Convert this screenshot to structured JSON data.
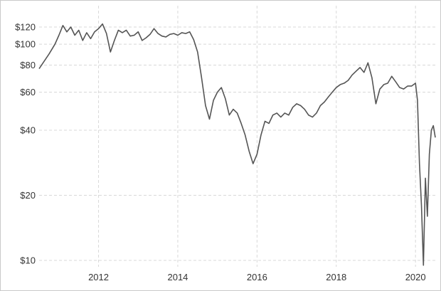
{
  "chart_data": {
    "type": "line",
    "title": "",
    "xlabel": "",
    "ylabel": "",
    "y_scale": "log",
    "ylim": [
      9.5,
      130
    ],
    "xlim": [
      2010.5,
      2020.5
    ],
    "grid": true,
    "line_color": "#555555",
    "y_ticks": [
      {
        "value": 120,
        "label": "$120"
      },
      {
        "value": 100,
        "label": "$100"
      },
      {
        "value": 80,
        "label": "$80"
      },
      {
        "value": 60,
        "label": "$60"
      },
      {
        "value": 40,
        "label": "$40"
      },
      {
        "value": 20,
        "label": "$20"
      },
      {
        "value": 10,
        "label": "$10"
      }
    ],
    "x_ticks": [
      {
        "value": 2012,
        "label": "2012"
      },
      {
        "value": 2014,
        "label": "2014"
      },
      {
        "value": 2016,
        "label": "2016"
      },
      {
        "value": 2018,
        "label": "2018"
      },
      {
        "value": 2020,
        "label": "2020"
      }
    ],
    "series": [
      {
        "x": [
          2010.5,
          2010.6,
          2010.75,
          2010.9,
          2011.0,
          2011.1,
          2011.2,
          2011.3,
          2011.4,
          2011.5,
          2011.6,
          2011.7,
          2011.8,
          2011.9,
          2012.0,
          2012.1,
          2012.2,
          2012.3,
          2012.4,
          2012.5,
          2012.6,
          2012.7,
          2012.8,
          2012.9,
          2013.0,
          2013.1,
          2013.2,
          2013.3,
          2013.4,
          2013.5,
          2013.6,
          2013.7,
          2013.8,
          2013.9,
          2014.0,
          2014.1,
          2014.2,
          2014.3,
          2014.4,
          2014.5,
          2014.6,
          2014.7,
          2014.8,
          2014.9,
          2015.0,
          2015.1,
          2015.2,
          2015.3,
          2015.4,
          2015.5,
          2015.6,
          2015.7,
          2015.8,
          2015.9,
          2016.0,
          2016.1,
          2016.2,
          2016.3,
          2016.4,
          2016.5,
          2016.6,
          2016.7,
          2016.8,
          2016.9,
          2017.0,
          2017.1,
          2017.2,
          2017.3,
          2017.4,
          2017.5,
          2017.6,
          2017.7,
          2017.8,
          2017.9,
          2018.0,
          2018.1,
          2018.2,
          2018.3,
          2018.4,
          2018.5,
          2018.6,
          2018.7,
          2018.8,
          2018.9,
          2019.0,
          2019.1,
          2019.2,
          2019.3,
          2019.4,
          2019.5,
          2019.6,
          2019.7,
          2019.8,
          2019.9,
          2020.0,
          2020.05,
          2020.1,
          2020.15,
          2020.2,
          2020.25,
          2020.3,
          2020.35,
          2020.4,
          2020.45,
          2020.5
        ],
        "values": [
          77,
          82,
          90,
          100,
          110,
          122,
          114,
          120,
          110,
          116,
          104,
          113,
          106,
          114,
          118,
          124,
          112,
          92,
          104,
          116,
          113,
          116,
          109,
          110,
          114,
          104,
          107,
          111,
          118,
          112,
          109,
          108,
          111,
          112,
          110,
          113,
          112,
          114,
          105,
          92,
          70,
          52,
          45,
          55,
          60,
          63,
          56,
          47,
          50,
          48,
          43,
          38,
          32,
          28,
          31,
          38,
          44,
          43,
          47,
          48,
          46,
          48,
          47,
          51,
          53,
          52,
          50,
          47,
          46,
          48,
          52,
          54,
          57,
          60,
          63,
          65,
          66,
          68,
          72,
          75,
          78,
          74,
          82,
          70,
          53,
          62,
          65,
          66,
          71,
          67,
          63,
          62,
          64,
          64,
          66,
          55,
          28,
          18,
          9.5,
          24,
          16,
          31,
          40,
          42,
          37
        ]
      }
    ]
  }
}
